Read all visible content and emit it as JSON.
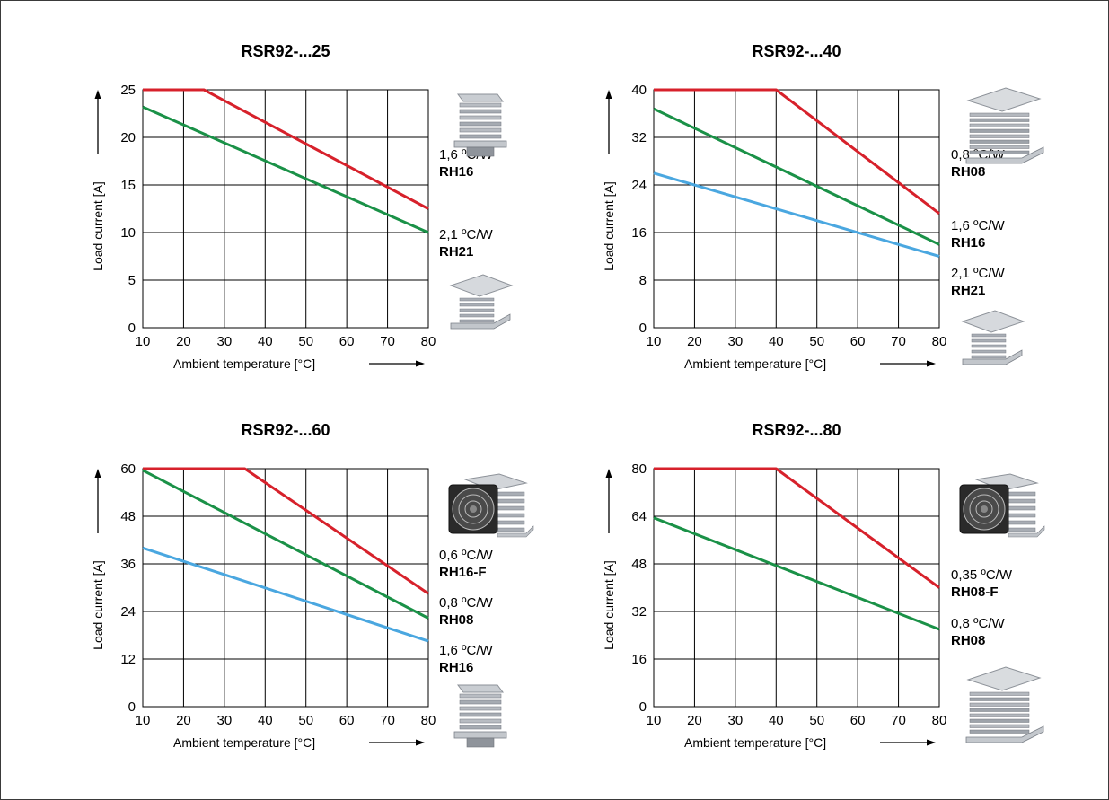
{
  "colors": {
    "frame": "#3a3a3a",
    "grid": "#000000",
    "red": "#d7212b",
    "green": "#1a9147",
    "blue": "#4aa7e0"
  },
  "chart_data": [
    {
      "type": "line",
      "title": "RSR92-...25",
      "xlabel": "Ambient temperature [°C]",
      "ylabel": "Load current [A]",
      "xlim": [
        10,
        80
      ],
      "ylim": [
        0,
        25
      ],
      "x_ticks": [
        10,
        20,
        30,
        40,
        50,
        60,
        70,
        80
      ],
      "y_ticks": [
        0,
        5,
        10,
        15,
        20,
        25
      ],
      "grid": true,
      "series": [
        {
          "color": "red",
          "points": [
            [
              10,
              25
            ],
            [
              25,
              25
            ],
            [
              80,
              12.5
            ]
          ]
        },
        {
          "color": "green",
          "points": [
            [
              10,
              23.2
            ],
            [
              80,
              10
            ]
          ]
        }
      ],
      "heatsinks": [
        {
          "rating": "1,6 ºC/W",
          "name": "RH16",
          "image": "finned-heatsink-icon"
        },
        {
          "rating": "2,1 ºC/W",
          "name": "RH21",
          "image": "flat-heatsink-icon"
        }
      ]
    },
    {
      "type": "line",
      "title": "RSR92-...40",
      "xlabel": "Ambient temperature [°C]",
      "ylabel": "Load current [A]",
      "xlim": [
        10,
        80
      ],
      "ylim": [
        0,
        40
      ],
      "x_ticks": [
        10,
        20,
        30,
        40,
        50,
        60,
        70,
        80
      ],
      "y_ticks": [
        0,
        8,
        16,
        24,
        32,
        40
      ],
      "grid": true,
      "series": [
        {
          "color": "red",
          "points": [
            [
              10,
              40
            ],
            [
              40,
              40
            ],
            [
              80,
              19.2
            ]
          ]
        },
        {
          "color": "green",
          "points": [
            [
              10,
              36.8
            ],
            [
              80,
              14
            ]
          ]
        },
        {
          "color": "blue",
          "points": [
            [
              10,
              26
            ],
            [
              80,
              12
            ]
          ]
        }
      ],
      "heatsinks": [
        {
          "rating": "0,8 ºC/W",
          "name": "RH08",
          "image": "large-heatsink-icon"
        },
        {
          "rating": "1,6 ºC/W",
          "name": "RH16",
          "image": ""
        },
        {
          "rating": "2,1 ºC/W",
          "name": "RH21",
          "image": "flat-heatsink-icon"
        }
      ]
    },
    {
      "type": "line",
      "title": "RSR92-...60",
      "xlabel": "Ambient temperature [°C]",
      "ylabel": "Load current [A]",
      "xlim": [
        10,
        80
      ],
      "ylim": [
        0,
        60
      ],
      "x_ticks": [
        10,
        20,
        30,
        40,
        50,
        60,
        70,
        80
      ],
      "y_ticks": [
        0,
        12,
        24,
        36,
        48,
        60
      ],
      "grid": true,
      "series": [
        {
          "color": "red",
          "points": [
            [
              10,
              60
            ],
            [
              35,
              60
            ],
            [
              80,
              28.5
            ]
          ]
        },
        {
          "color": "green",
          "points": [
            [
              10,
              59.6
            ],
            [
              80,
              22.3
            ]
          ]
        },
        {
          "color": "blue",
          "points": [
            [
              10,
              40
            ],
            [
              80,
              16.5
            ]
          ]
        }
      ],
      "heatsinks": [
        {
          "rating": "0,6 ºC/W",
          "name": "RH16-F",
          "image": "fan-heatsink-icon"
        },
        {
          "rating": "0,8 ºC/W",
          "name": "RH08",
          "image": ""
        },
        {
          "rating": "1,6 ºC/W",
          "name": "RH16",
          "image": "finned-heatsink-icon"
        }
      ]
    },
    {
      "type": "line",
      "title": "RSR92-...80",
      "xlabel": "Ambient temperature [°C]",
      "ylabel": "Load current [A]",
      "xlim": [
        10,
        80
      ],
      "ylim": [
        0,
        80
      ],
      "x_ticks": [
        10,
        20,
        30,
        40,
        50,
        60,
        70,
        80
      ],
      "y_ticks": [
        0,
        16,
        32,
        48,
        64,
        80
      ],
      "grid": true,
      "series": [
        {
          "color": "red",
          "points": [
            [
              10,
              80
            ],
            [
              40,
              80
            ],
            [
              80,
              40
            ]
          ]
        },
        {
          "color": "green",
          "points": [
            [
              10,
              63.5
            ],
            [
              80,
              26
            ]
          ]
        }
      ],
      "heatsinks": [
        {
          "rating": "0,35 ºC/W",
          "name": "RH08-F",
          "image": "fan-heatsink-icon"
        },
        {
          "rating": "0,8 ºC/W",
          "name": "RH08",
          "image": "large-heatsink-icon"
        }
      ]
    }
  ]
}
